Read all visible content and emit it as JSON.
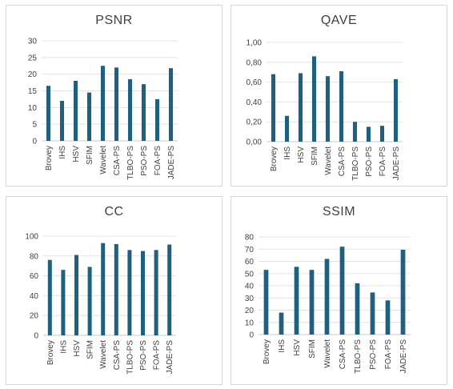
{
  "chart_data": [
    {
      "type": "bar",
      "title": "PSNR",
      "categories": [
        "Brovey",
        "IHS",
        "HSV",
        "SFIM",
        "Wavelet",
        "CSA-PS",
        "TLBO-PS",
        "PSO-PS",
        "FOA-PS",
        "JADE-PS"
      ],
      "values": [
        16.5,
        12,
        18,
        14.5,
        22.5,
        22,
        18.5,
        17,
        12.5,
        21.8
      ],
      "ylim": [
        0,
        30
      ],
      "yticks": [
        0,
        5,
        10,
        15,
        20,
        25,
        30
      ],
      "ytick_labels": [
        "0",
        "5",
        "10",
        "15",
        "20",
        "25",
        "30"
      ],
      "grid": true,
      "color": "#1f5f7f"
    },
    {
      "type": "bar",
      "title": "QAVE",
      "categories": [
        "Brovey",
        "IHS",
        "HSV",
        "SFIM",
        "Wavelet",
        "CSA-PS",
        "TLBO-PS",
        "PSO-PS",
        "FOA-PS",
        "JADE-PS"
      ],
      "values": [
        0.68,
        0.26,
        0.69,
        0.86,
        0.66,
        0.71,
        0.2,
        0.15,
        0.16,
        0.63
      ],
      "ylim": [
        0,
        1
      ],
      "yticks": [
        0,
        0.2,
        0.4,
        0.6,
        0.8,
        1
      ],
      "ytick_labels": [
        "0,00",
        "0,20",
        "0,40",
        "0,60",
        "0,80",
        "1,00"
      ],
      "grid": true,
      "color": "#1f5f7f"
    },
    {
      "type": "bar",
      "title": "CC",
      "categories": [
        "Brovey",
        "IHS",
        "HSV",
        "SFIM",
        "Wavelet",
        "CSA-PS",
        "TLBO-PS",
        "PSO-PS",
        "FOA-PS",
        "JADE-PS"
      ],
      "values": [
        76,
        66,
        81,
        69,
        93,
        92,
        86,
        85,
        86,
        91.5
      ],
      "ylim": [
        0,
        100
      ],
      "yticks": [
        0,
        20,
        40,
        60,
        80,
        100
      ],
      "ytick_labels": [
        "0",
        "20",
        "40",
        "60",
        "80",
        "100"
      ],
      "grid": true,
      "color": "#1f5f7f"
    },
    {
      "type": "bar",
      "title": "SSIM",
      "categories": [
        "Brovey",
        "IHS",
        "HSV",
        "SFIM",
        "Wavelet",
        "CSA-PS",
        "TLBO-PS",
        "PSO-PS",
        "FOA-PS",
        "JADE-PS"
      ],
      "values": [
        53,
        18,
        55.5,
        53,
        62,
        72,
        42,
        34.5,
        28,
        69.5
      ],
      "ylim": [
        0,
        80
      ],
      "yticks": [
        0,
        10,
        20,
        30,
        40,
        50,
        60,
        70,
        80
      ],
      "ytick_labels": [
        "0",
        "10",
        "20",
        "30",
        "40",
        "50",
        "60",
        "70",
        "80"
      ],
      "grid": true,
      "color": "#1f5f7f"
    }
  ]
}
